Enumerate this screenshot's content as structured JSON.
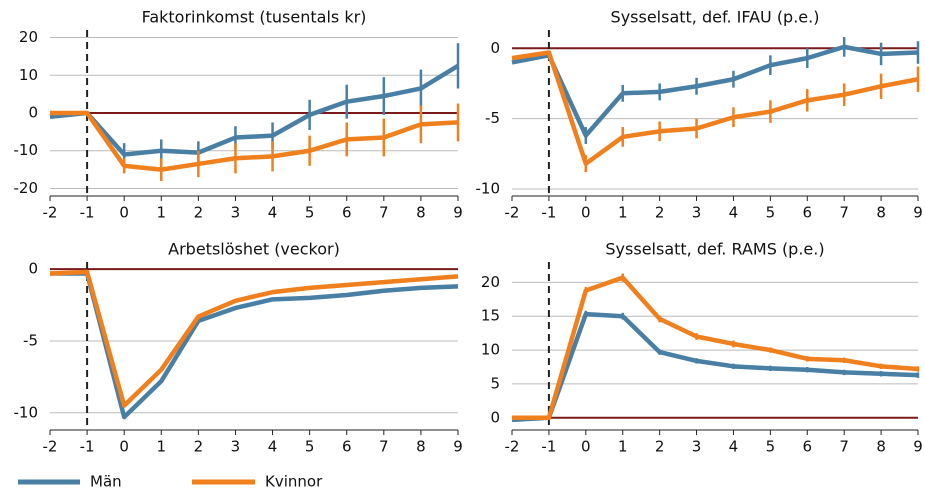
{
  "chart_data": [
    {
      "type": "line",
      "title": "Faktorinkomst (tusentals kr)",
      "x": [
        -2,
        -1,
        0,
        1,
        2,
        3,
        4,
        5,
        6,
        7,
        8,
        9
      ],
      "xlim": [
        -2,
        9
      ],
      "xticks": [
        -2,
        -1,
        0,
        1,
        2,
        3,
        4,
        5,
        6,
        7,
        8,
        9
      ],
      "ylim": [
        -22,
        22
      ],
      "yticks": [
        -20,
        -10,
        0,
        10,
        20
      ],
      "grid": true,
      "hline": 0,
      "vline": -1,
      "series": [
        {
          "name": "Män",
          "color": "#4a7fa5",
          "values": [
            -1,
            0,
            -11,
            -10,
            -10.5,
            -6.5,
            -6,
            -0.5,
            3,
            4.5,
            6.5,
            12.5
          ],
          "errors": [
            null,
            null,
            3,
            3,
            3,
            3,
            3.5,
            4,
            4.5,
            5,
            5,
            6
          ]
        },
        {
          "name": "Kvinnor",
          "color": "#f07f1e",
          "values": [
            0,
            0,
            -14,
            -15,
            -13.5,
            -12,
            -11.5,
            -10,
            -7,
            -6.5,
            -3,
            -2.5
          ],
          "errors": [
            null,
            null,
            2,
            3,
            3.5,
            4,
            4,
            4,
            4.5,
            5,
            5,
            5
          ]
        }
      ]
    },
    {
      "type": "line",
      "title": "Sysselsatt, def. IFAU (p.e.)",
      "x": [
        -2,
        -1,
        0,
        1,
        2,
        3,
        4,
        5,
        6,
        7,
        8,
        9
      ],
      "xlim": [
        -2,
        9
      ],
      "xticks": [
        -2,
        -1,
        0,
        1,
        2,
        3,
        4,
        5,
        6,
        7,
        8,
        9
      ],
      "ylim": [
        -10.5,
        1.3
      ],
      "yticks": [
        -10,
        -5,
        0
      ],
      "grid": true,
      "hline": 0,
      "vline": -1,
      "series": [
        {
          "name": "Män",
          "color": "#4a7fa5",
          "values": [
            -1,
            -0.5,
            -6.2,
            -3.2,
            -3.1,
            -2.7,
            -2.2,
            -1.2,
            -0.7,
            0.1,
            -0.4,
            -0.3
          ],
          "errors": [
            null,
            null,
            0.6,
            0.6,
            0.6,
            0.6,
            0.6,
            0.7,
            0.7,
            0.7,
            0.8,
            0.8
          ]
        },
        {
          "name": "Kvinnor",
          "color": "#f07f1e",
          "values": [
            -0.7,
            -0.3,
            -8.2,
            -6.3,
            -5.9,
            -5.7,
            -4.9,
            -4.5,
            -3.7,
            -3.3,
            -2.7,
            -2.2
          ],
          "errors": [
            null,
            null,
            0.6,
            0.7,
            0.7,
            0.7,
            0.7,
            0.8,
            0.8,
            0.8,
            0.9,
            0.9
          ]
        }
      ]
    },
    {
      "type": "line",
      "title": "Arbetslöshet (veckor)",
      "x": [
        -2,
        -1,
        0,
        1,
        2,
        3,
        4,
        5,
        6,
        7,
        8,
        9
      ],
      "xlim": [
        -2,
        9
      ],
      "xticks": [
        -2,
        -1,
        0,
        1,
        2,
        3,
        4,
        5,
        6,
        7,
        8,
        9
      ],
      "ylim": [
        -11.2,
        0.5
      ],
      "yticks": [
        -10,
        -5,
        0
      ],
      "grid": true,
      "hline": 0,
      "vline": -1,
      "series": [
        {
          "name": "Män",
          "color": "#4a7fa5",
          "values": [
            -0.3,
            -0.3,
            -10.3,
            -7.8,
            -3.6,
            -2.7,
            -2.1,
            -2,
            -1.8,
            -1.5,
            -1.3,
            -1.2
          ]
        },
        {
          "name": "Kvinnor",
          "color": "#f07f1e",
          "values": [
            -0.3,
            -0.2,
            -9.5,
            -7,
            -3.3,
            -2.2,
            -1.6,
            -1.3,
            -1.1,
            -0.9,
            -0.7,
            -0.5
          ]
        }
      ]
    },
    {
      "type": "line",
      "title": "Sysselsatt, def. RAMS (p.e.)",
      "x": [
        -2,
        -1,
        0,
        1,
        2,
        3,
        4,
        5,
        6,
        7,
        8,
        9
      ],
      "xlim": [
        -2,
        9
      ],
      "xticks": [
        -2,
        -1,
        0,
        1,
        2,
        3,
        4,
        5,
        6,
        7,
        8,
        9
      ],
      "ylim": [
        -1.8,
        23
      ],
      "yticks": [
        0,
        5,
        10,
        15,
        20
      ],
      "grid": true,
      "hline": 0,
      "vline": -1,
      "series": [
        {
          "name": "Män",
          "color": "#4a7fa5",
          "values": [
            -0.3,
            0,
            15.3,
            15,
            9.7,
            8.4,
            7.6,
            7.3,
            7.1,
            6.7,
            6.5,
            6.3
          ],
          "errors": [
            null,
            null,
            0.5,
            0.5,
            0.4,
            0.4,
            0.4,
            0.4,
            0.4,
            0.4,
            0.4,
            0.4
          ]
        },
        {
          "name": "Kvinnor",
          "color": "#f07f1e",
          "values": [
            0,
            0,
            18.8,
            20.7,
            14.6,
            12,
            10.9,
            10,
            8.7,
            8.5,
            7.6,
            7.2
          ],
          "errors": [
            null,
            null,
            0.5,
            0.6,
            0.5,
            0.5,
            0.5,
            0.4,
            0.4,
            0.4,
            0.4,
            0.4
          ]
        }
      ]
    }
  ]
}
